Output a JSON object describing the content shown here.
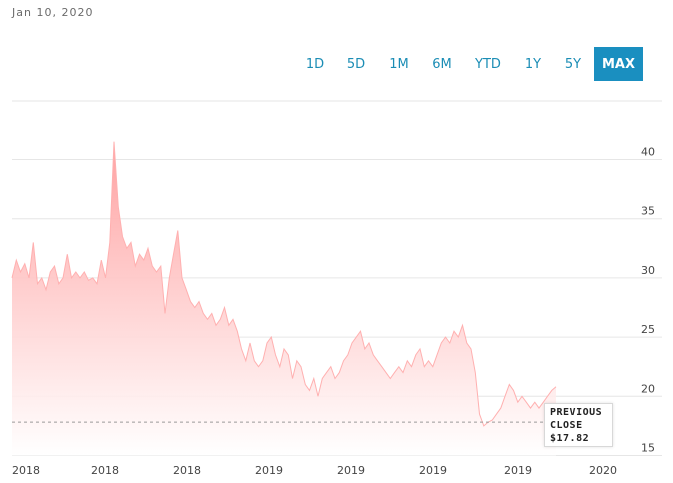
{
  "header": {
    "date": "Jan 10, 2020"
  },
  "ranges": [
    {
      "label": "1D"
    },
    {
      "label": "5D"
    },
    {
      "label": "1M"
    },
    {
      "label": "6M"
    },
    {
      "label": "YTD"
    },
    {
      "label": "1Y"
    },
    {
      "label": "5Y"
    },
    {
      "label": "MAX",
      "active": true
    }
  ],
  "colors": {
    "area_top": "#ff9d9d",
    "area_bottom": "#ffffff",
    "accent": "#1a8fc0",
    "grid": "#e6e6e6"
  },
  "tooltip": {
    "line1": "PREVIOUS",
    "line2": "CLOSE",
    "line3": "$17.82"
  },
  "chart_data": {
    "type": "area",
    "y_ticks": [
      40,
      35,
      30,
      25,
      20,
      15
    ],
    "x_labels": [
      "2018",
      "2018",
      "2018",
      "2019",
      "2019",
      "2019",
      "2019",
      "2020"
    ],
    "previous_close": 17.82,
    "ylim": [
      15,
      42
    ],
    "grid": true,
    "values": [
      30.0,
      31.5,
      30.5,
      31.2,
      30.0,
      33.0,
      29.5,
      30.0,
      29.0,
      30.5,
      31.0,
      29.5,
      30.0,
      32.0,
      30.0,
      30.5,
      30.0,
      30.5,
      29.8,
      30.0,
      29.5,
      31.5,
      30.0,
      33.0,
      41.5,
      36.0,
      33.5,
      32.5,
      33.0,
      31.0,
      32.0,
      31.5,
      32.5,
      31.0,
      30.5,
      31.0,
      27.0,
      30.0,
      32.0,
      34.0,
      30.0,
      29.0,
      28.0,
      27.5,
      28.0,
      27.0,
      26.5,
      27.0,
      26.0,
      26.5,
      27.5,
      26.0,
      26.5,
      25.5,
      24.0,
      23.0,
      24.5,
      23.0,
      22.5,
      23.0,
      24.5,
      25.0,
      23.5,
      22.5,
      24.0,
      23.5,
      21.5,
      23.0,
      22.5,
      21.0,
      20.5,
      21.5,
      20.0,
      21.5,
      22.0,
      22.5,
      21.5,
      22.0,
      23.0,
      23.5,
      24.5,
      25.0,
      25.5,
      24.0,
      24.5,
      23.5,
      23.0,
      22.5,
      22.0,
      21.5,
      22.0,
      22.5,
      22.0,
      23.0,
      22.5,
      23.5,
      24.0,
      22.5,
      23.0,
      22.5,
      23.5,
      24.5,
      25.0,
      24.5,
      25.5,
      25.0,
      26.0,
      24.5,
      24.0,
      22.0,
      18.5,
      17.5,
      17.8,
      18.0,
      18.5,
      19.0,
      20.0,
      21.0,
      20.5,
      19.5,
      20.0,
      19.5,
      19.0,
      19.5,
      19.0,
      19.5,
      20.0,
      20.5,
      20.8
    ]
  }
}
